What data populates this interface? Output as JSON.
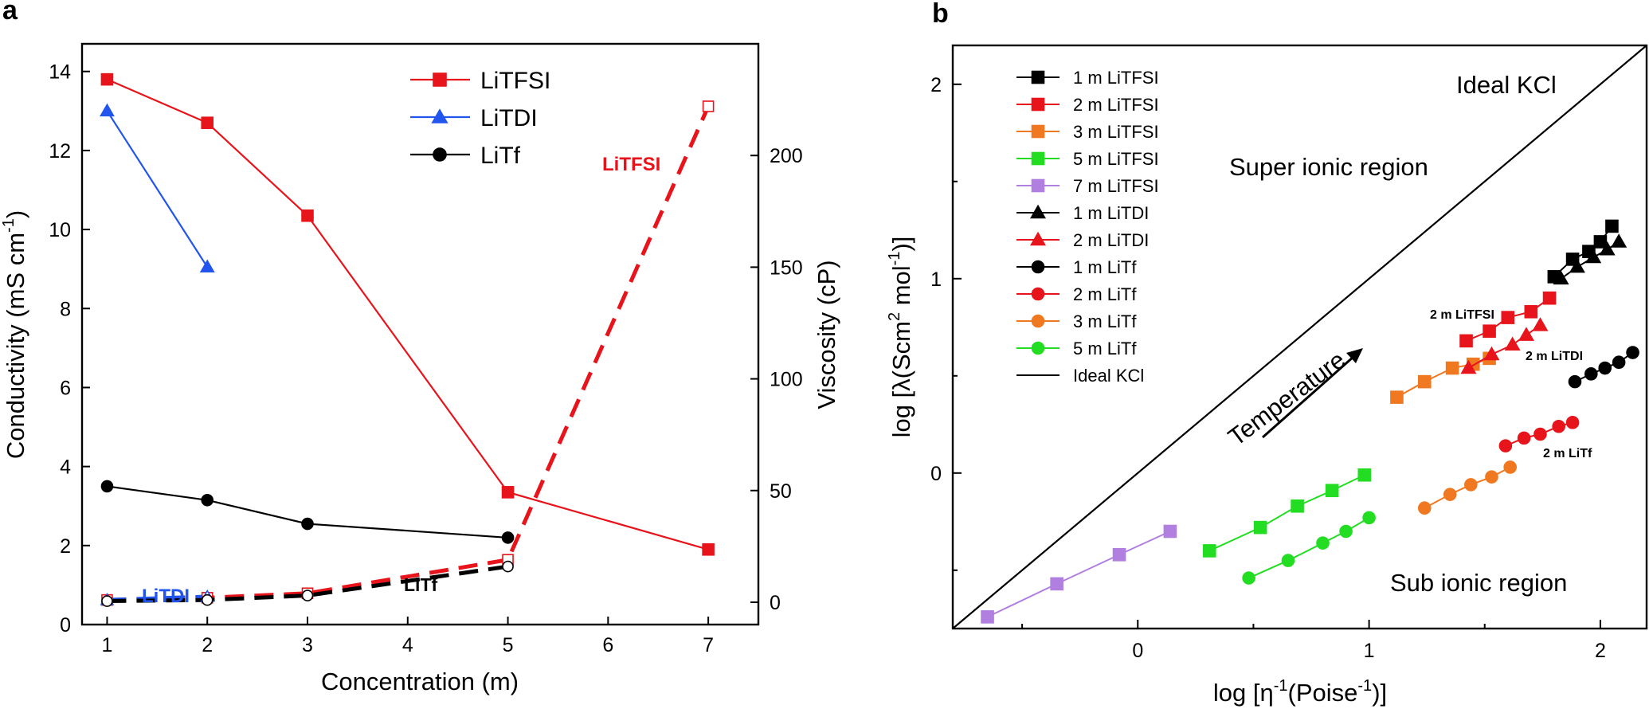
{
  "chart_data": [
    {
      "panel": "a",
      "type": "line",
      "xlabel": "Concentration (m)",
      "ylabel": "Conductivity (mS cm⁻¹)",
      "ylabel_right": "Viscosity (cP)",
      "xlim": [
        0.75,
        7.5
      ],
      "ylim": [
        0,
        14.7
      ],
      "ylim_right": [
        -10,
        250
      ],
      "x_ticks": [
        1,
        2,
        3,
        4,
        5,
        6,
        7
      ],
      "y_ticks": [
        0,
        2,
        4,
        6,
        8,
        10,
        12,
        14
      ],
      "y_right_ticks": [
        0,
        50,
        100,
        150,
        200
      ],
      "legend_position": "top-right",
      "conductivity_series": [
        {
          "name": "LiTFSI",
          "color": "#e8141b",
          "marker": "square",
          "x": [
            1,
            2,
            3,
            5,
            7
          ],
          "y": [
            13.8,
            12.7,
            10.35,
            3.35,
            1.9
          ]
        },
        {
          "name": "LiTDI",
          "color": "#2255ee",
          "marker": "triangle",
          "x": [
            1,
            2
          ],
          "y": [
            13.0,
            9.05
          ]
        },
        {
          "name": "LiTf",
          "color": "#000000",
          "marker": "circle",
          "x": [
            1,
            2,
            3,
            5
          ],
          "y": [
            3.5,
            3.15,
            2.55,
            2.2
          ]
        }
      ],
      "viscosity_series": [
        {
          "label": "LiTFSI",
          "color": "#e8141b",
          "marker": "open-square",
          "x": [
            1,
            2,
            3,
            5,
            7
          ],
          "y": [
            1,
            2,
            4,
            19,
            222
          ]
        },
        {
          "label": "LiTDI",
          "color": "#2255ee",
          "marker": "open-triangle",
          "x": [
            1,
            2
          ],
          "y": [
            1,
            2.5
          ]
        },
        {
          "label": "LiTf",
          "color": "#000000",
          "marker": "open-circle",
          "x": [
            1,
            2,
            3,
            5
          ],
          "y": [
            0.5,
            1,
            3,
            16
          ]
        }
      ],
      "annotations": [
        "LiTFSI",
        "LiTDI",
        "LiTf"
      ]
    },
    {
      "panel": "b",
      "type": "scatter",
      "xlabel": "log [η⁻¹(Poise⁻¹)]",
      "ylabel": "log [λ(Scm² mol⁻¹)]",
      "xlim": [
        -0.8,
        2.2
      ],
      "ylim": [
        -0.8,
        2.2
      ],
      "x_ticks": [
        0,
        1,
        2
      ],
      "y_ticks": [
        0,
        1,
        2
      ],
      "legend_position": "top-left",
      "series": [
        {
          "name": "1 m LiTFSI",
          "color": "#000000",
          "marker": "square",
          "x": [
            1.8,
            1.88,
            1.95,
            2.0,
            2.05
          ],
          "y": [
            1.01,
            1.1,
            1.14,
            1.19,
            1.27
          ]
        },
        {
          "name": "2 m LiTFSI",
          "color": "#e8141b",
          "marker": "square",
          "x": [
            1.42,
            1.52,
            1.6,
            1.7,
            1.78
          ],
          "y": [
            0.68,
            0.73,
            0.8,
            0.83,
            0.9
          ]
        },
        {
          "name": "3 m LiTFSI",
          "color": "#f07820",
          "marker": "square",
          "x": [
            1.12,
            1.24,
            1.36,
            1.45,
            1.52
          ],
          "y": [
            0.39,
            0.47,
            0.54,
            0.56,
            0.59
          ]
        },
        {
          "name": "5 m LiTFSI",
          "color": "#22dd22",
          "marker": "square",
          "x": [
            0.31,
            0.53,
            0.69,
            0.84,
            0.98
          ],
          "y": [
            -0.4,
            -0.28,
            -0.17,
            -0.09,
            -0.01
          ]
        },
        {
          "name": "7 m LiTFSI",
          "color": "#b07fe0",
          "marker": "square",
          "x": [
            -0.65,
            -0.35,
            -0.08,
            0.14
          ],
          "y": [
            -0.74,
            -0.57,
            -0.42,
            -0.3
          ]
        },
        {
          "name": "1 m LiTDI",
          "color": "#000000",
          "marker": "triangle",
          "x": [
            1.83,
            1.9,
            1.97,
            2.03,
            2.08
          ],
          "y": [
            1.0,
            1.06,
            1.11,
            1.15,
            1.19
          ]
        },
        {
          "name": "2 m LiTDI",
          "color": "#e8141b",
          "marker": "triangle",
          "x": [
            1.43,
            1.53,
            1.62,
            1.68,
            1.74
          ],
          "y": [
            0.54,
            0.61,
            0.66,
            0.71,
            0.76
          ]
        },
        {
          "name": "1 m LiTf",
          "color": "#000000",
          "marker": "circle",
          "x": [
            1.89,
            1.96,
            2.02,
            2.08,
            2.14
          ],
          "y": [
            0.47,
            0.51,
            0.54,
            0.57,
            0.62
          ]
        },
        {
          "name": "2 m LiTf",
          "color": "#e8141b",
          "marker": "circle",
          "x": [
            1.59,
            1.67,
            1.74,
            1.82,
            1.88
          ],
          "y": [
            0.14,
            0.18,
            0.2,
            0.24,
            0.26
          ]
        },
        {
          "name": "3 m LiTf",
          "color": "#f07820",
          "marker": "circle",
          "x": [
            1.24,
            1.35,
            1.44,
            1.53,
            1.61
          ],
          "y": [
            -0.18,
            -0.11,
            -0.06,
            -0.02,
            0.03
          ]
        },
        {
          "name": "5 m LiTf",
          "color": "#22dd22",
          "marker": "circle",
          "x": [
            0.48,
            0.65,
            0.8,
            0.9,
            1.0
          ],
          "y": [
            -0.54,
            -0.45,
            -0.36,
            -0.3,
            -0.23
          ]
        }
      ],
      "ideal_line": {
        "name": "Ideal KCl",
        "x": [
          -0.8,
          2.2
        ],
        "y": [
          -0.8,
          2.2
        ]
      },
      "annotations": [
        "Ideal KCl",
        "Super ionic region",
        "Sub ionic region",
        "Temperature",
        "2 m LiTFSI",
        "2 m LiTDI",
        "2 m LiTf"
      ]
    }
  ]
}
